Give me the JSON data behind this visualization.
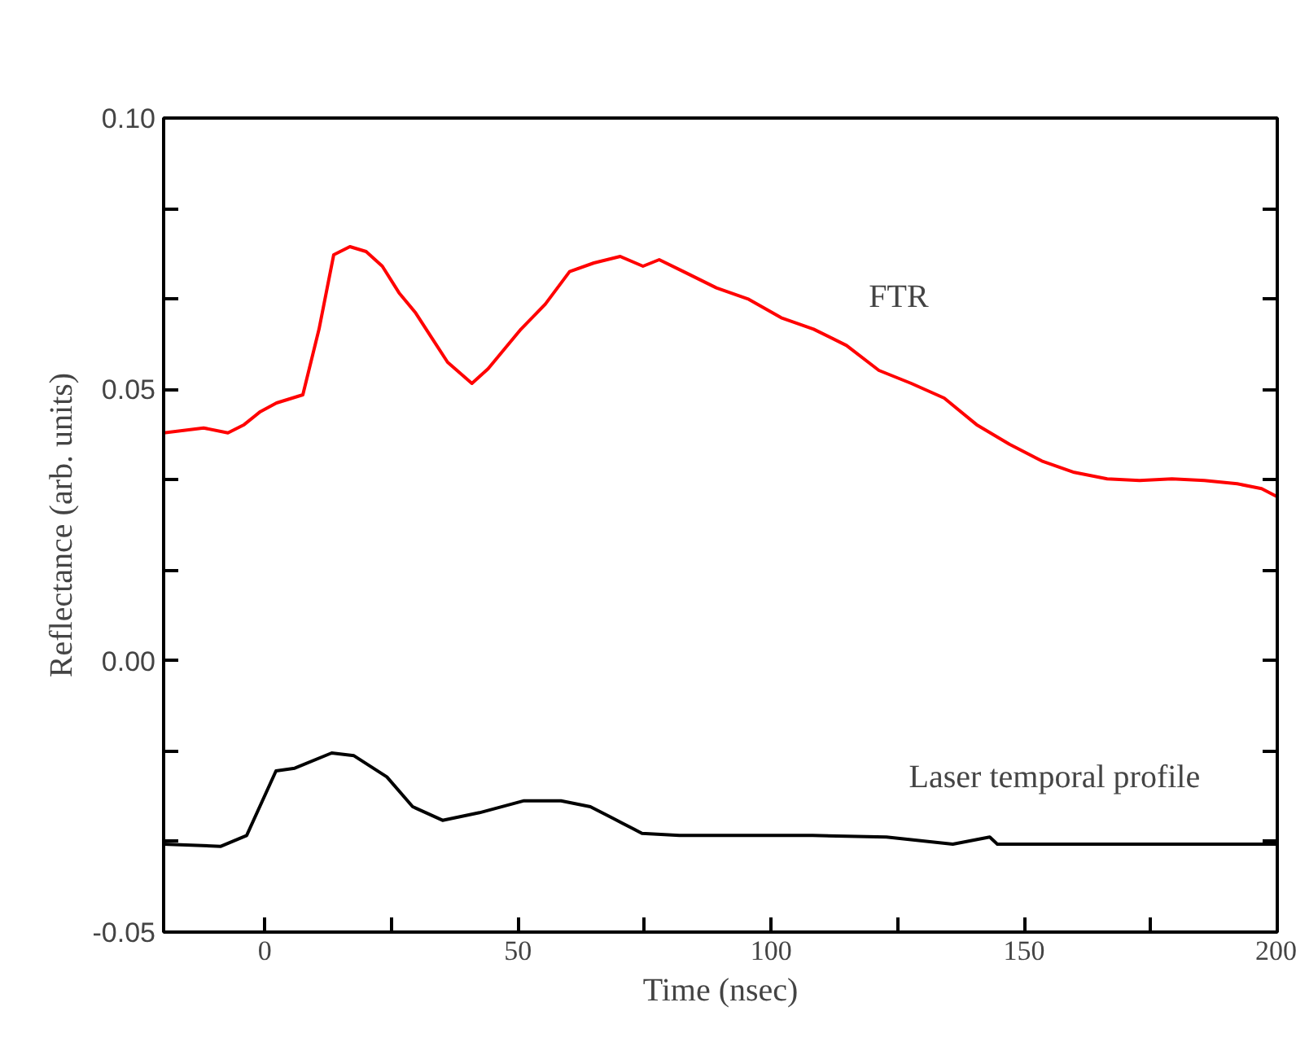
{
  "chart_data": {
    "type": "line",
    "xlabel": "Time (nsec)",
    "ylabel": "Reflectance (arb. units)",
    "xlim": [
      -20,
      200
    ],
    "ylim": [
      -0.05,
      0.1
    ],
    "xticks": [
      0,
      {
        "value": 25,
        "label": null
      },
      50,
      {
        "value": 75,
        "label": null
      },
      100,
      {
        "value": 125,
        "label": null
      },
      150,
      {
        "value": 175,
        "label": null
      },
      200
    ],
    "yticks": [
      {
        "value": -0.05,
        "label": "-0.05"
      },
      {
        "value": -0.0333,
        "label": null
      },
      {
        "value": -0.0167,
        "label": null
      },
      {
        "value": 0.0,
        "label": "0.00"
      },
      {
        "value": 0.0167,
        "label": null
      },
      {
        "value": 0.0333,
        "label": null
      },
      {
        "value": 0.05,
        "label": "0.05"
      },
      {
        "value": 0.0667,
        "label": null
      },
      {
        "value": 0.0833,
        "label": null
      },
      {
        "value": 0.1,
        "label": "0.10"
      }
    ],
    "grid": false,
    "marker": "none",
    "line_style": "solid",
    "series": [
      {
        "name": "FTR",
        "color": "#ff0000",
        "x": [
          -20,
          -12.1,
          -7.3,
          -4.1,
          -0.9,
          2.3,
          7.5,
          10.7,
          13.6,
          16.8,
          20.0,
          23.2,
          26.5,
          29.7,
          32.9,
          36.1,
          40.9,
          44.1,
          47.4,
          50.6,
          55.4,
          60.2,
          65.0,
          70.2,
          74.7,
          77.9,
          82.7,
          89.2,
          95.6,
          102.0,
          108.4,
          114.9,
          121.3,
          127.7,
          134.2,
          140.6,
          147.1,
          153.5,
          159.9,
          166.4,
          172.8,
          179.2,
          185.6,
          192.1,
          196.9,
          200
        ],
        "values": [
          0.042,
          0.0429,
          0.042,
          0.0435,
          0.0459,
          0.0475,
          0.049,
          0.0611,
          0.0748,
          0.0763,
          0.0754,
          0.0727,
          0.0678,
          0.0642,
          0.0596,
          0.055,
          0.0511,
          0.0538,
          0.0575,
          0.0611,
          0.0657,
          0.0717,
          0.0733,
          0.0745,
          0.0727,
          0.0739,
          0.0717,
          0.0687,
          0.0666,
          0.0632,
          0.0611,
          0.0581,
          0.0535,
          0.0511,
          0.0484,
          0.0435,
          0.0399,
          0.0368,
          0.0347,
          0.0335,
          0.0332,
          0.0335,
          0.0332,
          0.0326,
          0.0317,
          0.0302
        ]
      },
      {
        "name": "Laser temporal profile",
        "color": "#000000",
        "x": [
          -20,
          -8.7,
          -3.6,
          2.2,
          5.9,
          13.2,
          17.6,
          24.1,
          29.2,
          35.1,
          42.4,
          51.2,
          58.5,
          64.3,
          68.7,
          74.5,
          81.9,
          93.5,
          108.2,
          122.8,
          135.9,
          143.2,
          144.7,
          166.6,
          200
        ],
        "values": [
          -0.0338,
          -0.0342,
          -0.0322,
          -0.0203,
          -0.0198,
          -0.017,
          -0.0175,
          -0.0214,
          -0.0269,
          -0.0294,
          -0.028,
          -0.0258,
          -0.0258,
          -0.0269,
          -0.029,
          -0.0318,
          -0.0322,
          -0.0322,
          -0.0322,
          -0.0325,
          -0.0338,
          -0.0325,
          -0.0338,
          -0.0338,
          -0.0338
        ]
      }
    ]
  }
}
